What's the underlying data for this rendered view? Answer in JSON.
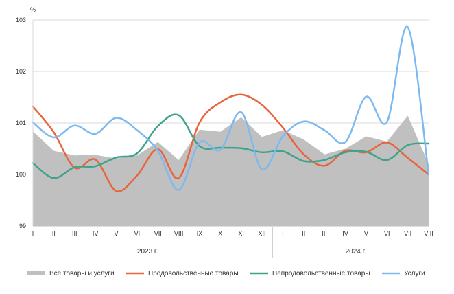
{
  "chart_data": {
    "type": "line",
    "ylabel": "%",
    "ylim": [
      99,
      103
    ],
    "yticks": [
      99,
      100,
      101,
      102,
      103
    ],
    "grid": "horizontal",
    "legend_position": "bottom",
    "categories": [
      "I",
      "II",
      "III",
      "IV",
      "V",
      "VI",
      "VII",
      "VIII",
      "IX",
      "X",
      "XI",
      "XII",
      "I",
      "II",
      "III",
      "IV",
      "V",
      "VI",
      "VII",
      "VIII"
    ],
    "year_groups": [
      {
        "label": "2023 г.",
        "start": 0,
        "end": 11
      },
      {
        "label": "2024 г.",
        "start": 12,
        "end": 19
      }
    ],
    "series": [
      {
        "name": "Все товары и услуги",
        "style": "area",
        "color": "#c0c0c0",
        "values": [
          100.84,
          100.46,
          100.37,
          100.38,
          100.31,
          100.37,
          100.63,
          100.28,
          100.87,
          100.83,
          101.11,
          100.73,
          100.86,
          100.68,
          100.39,
          100.5,
          100.74,
          100.64,
          101.14,
          100.2
        ]
      },
      {
        "name": "Продовольственные товары",
        "style": "line",
        "color": "#e8643c",
        "values": [
          101.32,
          100.82,
          100.13,
          100.29,
          99.68,
          99.98,
          100.49,
          99.93,
          101.01,
          101.4,
          101.55,
          101.35,
          100.91,
          100.39,
          100.17,
          100.46,
          100.43,
          100.62,
          100.32,
          100.0
        ]
      },
      {
        "name": "Непродовольственные товары",
        "style": "line",
        "color": "#3fa38c",
        "values": [
          100.22,
          99.93,
          100.14,
          100.16,
          100.33,
          100.41,
          100.94,
          101.15,
          100.55,
          100.52,
          100.51,
          100.43,
          100.45,
          100.26,
          100.28,
          100.43,
          100.44,
          100.28,
          100.57,
          100.6
        ]
      },
      {
        "name": "Услуги",
        "style": "line",
        "color": "#7eb9ef",
        "values": [
          101.01,
          100.72,
          100.95,
          100.79,
          101.1,
          100.86,
          100.46,
          99.7,
          100.62,
          100.48,
          101.21,
          100.1,
          100.74,
          101.03,
          100.86,
          100.63,
          101.51,
          101.02,
          102.86,
          100.0
        ]
      }
    ]
  }
}
